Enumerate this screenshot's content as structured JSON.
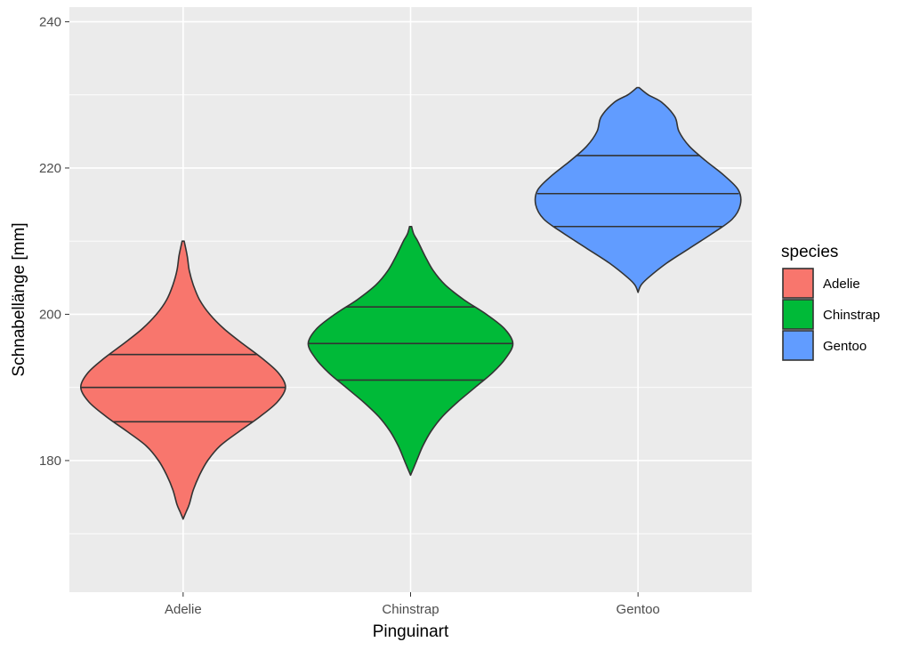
{
  "chart_data": {
    "type": "violin",
    "xlabel": "Pinguinart",
    "ylabel": "Schnabellänge [mm]",
    "ylim": [
      162,
      242
    ],
    "y_ticks": [
      180,
      200,
      220,
      240
    ],
    "grid": true,
    "categories": [
      "Adelie",
      "Chinstrap",
      "Gentoo"
    ],
    "legend": {
      "title": "species",
      "position": "right"
    },
    "series": [
      {
        "name": "Adelie",
        "color": "#F8766D",
        "min": 172,
        "max": 210,
        "quantiles": [
          185.3,
          190.0,
          194.5
        ],
        "density_profile": [
          [
            172,
            0.0
          ],
          [
            173,
            0.03
          ],
          [
            174,
            0.06
          ],
          [
            176,
            0.1
          ],
          [
            178,
            0.16
          ],
          [
            180,
            0.24
          ],
          [
            182,
            0.36
          ],
          [
            184,
            0.55
          ],
          [
            186,
            0.75
          ],
          [
            188,
            0.92
          ],
          [
            190,
            1.0
          ],
          [
            192,
            0.93
          ],
          [
            194,
            0.77
          ],
          [
            196,
            0.58
          ],
          [
            198,
            0.4
          ],
          [
            200,
            0.26
          ],
          [
            202,
            0.16
          ],
          [
            204,
            0.1
          ],
          [
            206,
            0.06
          ],
          [
            208,
            0.04
          ],
          [
            210,
            0.01
          ]
        ]
      },
      {
        "name": "Chinstrap",
        "color": "#00BA38",
        "min": 178,
        "max": 212,
        "quantiles": [
          191.0,
          196.0,
          201.0
        ],
        "density_profile": [
          [
            178,
            0.0
          ],
          [
            179,
            0.03
          ],
          [
            180,
            0.06
          ],
          [
            182,
            0.12
          ],
          [
            184,
            0.2
          ],
          [
            186,
            0.31
          ],
          [
            188,
            0.46
          ],
          [
            190,
            0.63
          ],
          [
            192,
            0.8
          ],
          [
            194,
            0.93
          ],
          [
            196,
            1.0
          ],
          [
            198,
            0.92
          ],
          [
            200,
            0.74
          ],
          [
            202,
            0.52
          ],
          [
            204,
            0.34
          ],
          [
            206,
            0.22
          ],
          [
            208,
            0.14
          ],
          [
            210,
            0.07
          ],
          [
            211,
            0.03
          ],
          [
            212,
            0.01
          ]
        ]
      },
      {
        "name": "Gentoo",
        "color": "#619CFF",
        "min": 203,
        "max": 231,
        "quantiles": [
          212.0,
          216.5,
          221.7
        ],
        "density_profile": [
          [
            203,
            0.0
          ],
          [
            204,
            0.03
          ],
          [
            205,
            0.1
          ],
          [
            207,
            0.28
          ],
          [
            209,
            0.5
          ],
          [
            211,
            0.72
          ],
          [
            213,
            0.92
          ],
          [
            215,
            1.0
          ],
          [
            217,
            0.98
          ],
          [
            219,
            0.84
          ],
          [
            221,
            0.66
          ],
          [
            223,
            0.5
          ],
          [
            225,
            0.4
          ],
          [
            227,
            0.36
          ],
          [
            229,
            0.23
          ],
          [
            230,
            0.1
          ],
          [
            231,
            0.01
          ]
        ]
      }
    ]
  }
}
